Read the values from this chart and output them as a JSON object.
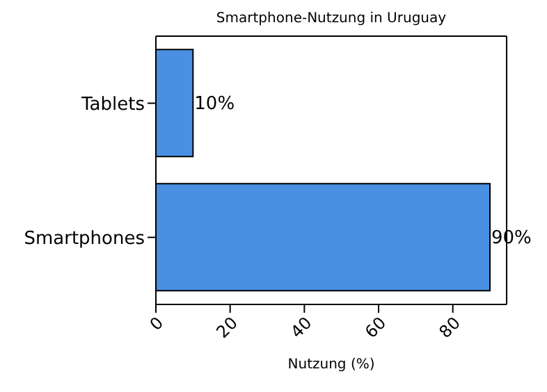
{
  "chart_data": {
    "type": "bar",
    "orientation": "horizontal",
    "title": "Smartphone-Nutzung in Uruguay",
    "xlabel": "Nutzung (%)",
    "categories": [
      "Tablets",
      "Smartphones"
    ],
    "values": [
      10,
      90
    ],
    "color": "#4a90e2",
    "value_labels": [
      "10%",
      "90%"
    ],
    "xlim": [
      0,
      94.5
    ],
    "xticks": [
      0,
      20,
      40,
      60,
      80
    ],
    "grid": false
  }
}
